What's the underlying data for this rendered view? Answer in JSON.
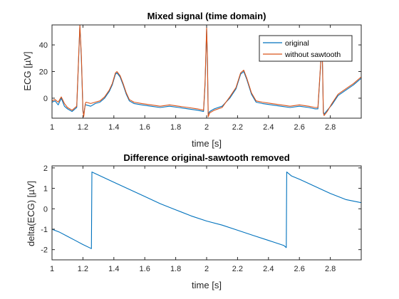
{
  "chart_data": [
    {
      "type": "line",
      "title": "Mixed signal (time domain)",
      "xlabel": "time [s]",
      "ylabel": "ECG [µV]",
      "xlim": [
        1.0,
        3.0
      ],
      "ylim": [
        -15,
        55
      ],
      "xticks": [
        1,
        1.2,
        1.4,
        1.6,
        1.8,
        2,
        2.2,
        2.4,
        2.6,
        2.8
      ],
      "xtick_labels": [
        "1",
        "1.2",
        "1.4",
        "1.6",
        "1.8",
        "2",
        "2.2",
        "2.4",
        "2.6",
        "2.8"
      ],
      "yticks": [
        0,
        20,
        40
      ],
      "ytick_labels": [
        "0",
        "20",
        "40"
      ],
      "grid": false,
      "legend_position": "top-right",
      "series": [
        {
          "name": "original",
          "color": "#0072BD",
          "x": [
            1.0,
            1.02,
            1.04,
            1.06,
            1.08,
            1.1,
            1.13,
            1.16,
            1.18,
            1.19,
            1.2,
            1.205,
            1.21,
            1.215,
            1.22,
            1.25,
            1.28,
            1.31,
            1.34,
            1.37,
            1.39,
            1.41,
            1.42,
            1.44,
            1.46,
            1.48,
            1.5,
            1.53,
            1.58,
            1.64,
            1.7,
            1.76,
            1.82,
            1.88,
            1.94,
            1.98,
            1.99,
            2.0,
            2.005,
            2.01,
            2.02,
            2.05,
            2.1,
            2.15,
            2.19,
            2.22,
            2.24,
            2.26,
            2.29,
            2.32,
            2.36,
            2.42,
            2.48,
            2.54,
            2.6,
            2.66,
            2.7,
            2.72,
            2.74,
            2.745,
            2.75,
            2.755,
            2.76,
            2.78,
            2.81,
            2.85,
            2.9,
            2.95,
            3.0
          ],
          "values": [
            -3,
            -2,
            -5,
            0,
            -6,
            -8,
            -10,
            -7,
            54,
            30,
            -10,
            -12,
            -8,
            -5,
            -5,
            -6,
            -4,
            -3,
            0,
            5,
            10,
            18,
            19,
            16,
            10,
            3,
            -2,
            -4,
            -5,
            -6,
            -7,
            -6,
            -7,
            -8,
            -9,
            -10,
            10,
            52,
            30,
            -12,
            -10,
            -8,
            -6,
            0,
            7,
            18,
            20,
            14,
            3,
            -3,
            -4,
            -5,
            -6,
            -7,
            -6,
            -7,
            -8,
            -8,
            30,
            45,
            20,
            -10,
            -12,
            -9,
            -5,
            2,
            6,
            10,
            15
          ]
        },
        {
          "name": "without sawtooth",
          "color": "#D95319",
          "x": [
            1.0,
            1.02,
            1.04,
            1.06,
            1.08,
            1.1,
            1.13,
            1.16,
            1.18,
            1.19,
            1.2,
            1.205,
            1.21,
            1.215,
            1.22,
            1.25,
            1.28,
            1.31,
            1.34,
            1.37,
            1.39,
            1.41,
            1.42,
            1.44,
            1.46,
            1.48,
            1.5,
            1.53,
            1.58,
            1.64,
            1.7,
            1.76,
            1.82,
            1.88,
            1.94,
            1.98,
            1.99,
            2.0,
            2.005,
            2.01,
            2.02,
            2.05,
            2.1,
            2.15,
            2.19,
            2.22,
            2.24,
            2.26,
            2.29,
            2.32,
            2.36,
            2.42,
            2.48,
            2.54,
            2.6,
            2.66,
            2.7,
            2.72,
            2.74,
            2.745,
            2.75,
            2.755,
            2.76,
            2.78,
            2.81,
            2.85,
            2.9,
            2.95,
            3.0
          ],
          "values": [
            -2,
            -1,
            -3,
            1,
            -4,
            -7,
            -9,
            -6,
            55,
            32,
            -9,
            -14,
            -9,
            -4,
            -3,
            -4,
            -3,
            -2,
            1,
            6,
            11,
            19,
            20,
            17,
            11,
            4,
            -1,
            -3,
            -4,
            -5,
            -6,
            -5,
            -6,
            -7,
            -8,
            -9,
            12,
            53,
            31,
            -14,
            -11,
            -9,
            -7,
            1,
            8,
            19,
            21,
            15,
            4,
            -2,
            -3,
            -4,
            -5,
            -6,
            -5,
            -6,
            -7,
            -7,
            31,
            46,
            22,
            -11,
            -13,
            -10,
            -4,
            3,
            7,
            11,
            16
          ]
        }
      ]
    },
    {
      "type": "line",
      "title": "Difference original-sawtooth removed",
      "xlabel": "time [s]",
      "ylabel": "delta(ECG) [µV]",
      "xlim": [
        1.0,
        3.0
      ],
      "ylim": [
        -2.5,
        2.1
      ],
      "xticks": [
        1,
        1.2,
        1.4,
        1.6,
        1.8,
        2,
        2.2,
        2.4,
        2.6,
        2.8
      ],
      "xtick_labels": [
        "1",
        "1.2",
        "1.4",
        "1.6",
        "1.8",
        "2",
        "2.2",
        "2.4",
        "2.6",
        "2.8"
      ],
      "yticks": [
        -2,
        -1,
        0,
        1,
        2
      ],
      "ytick_labels": [
        "-2",
        "-1",
        "0",
        "1",
        "2"
      ],
      "grid": false,
      "series": [
        {
          "color": "#0072BD",
          "x": [
            1.0,
            1.05,
            1.1,
            1.15,
            1.2,
            1.255,
            1.258,
            1.3,
            1.4,
            1.5,
            1.6,
            1.7,
            1.8,
            1.9,
            2.0,
            2.1,
            2.2,
            2.3,
            2.4,
            2.5,
            2.515,
            2.518,
            2.55,
            2.6,
            2.7,
            2.8,
            2.9,
            3.0
          ],
          "values": [
            -1.0,
            -1.15,
            -1.35,
            -1.55,
            -1.75,
            -1.95,
            1.8,
            1.65,
            1.3,
            0.95,
            0.6,
            0.25,
            -0.05,
            -0.35,
            -0.6,
            -0.8,
            -1.05,
            -1.3,
            -1.55,
            -1.8,
            -1.9,
            1.8,
            1.6,
            1.45,
            1.1,
            0.75,
            0.45,
            0.3
          ]
        }
      ]
    }
  ]
}
